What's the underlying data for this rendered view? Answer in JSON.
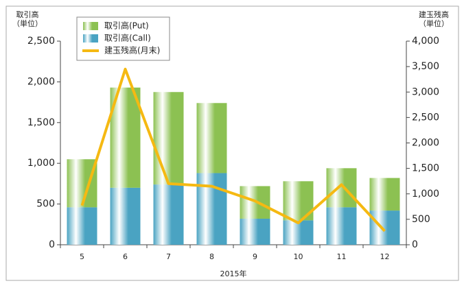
{
  "chart_data": {
    "type": "stacked-bar-line",
    "ylabel": [
      "取引高",
      "（単位）"
    ],
    "y2label": [
      "建玉残高",
      "（単位）"
    ],
    "xlabel": "2015年",
    "categories": [
      "5",
      "6",
      "7",
      "8",
      "9",
      "10",
      "11",
      "12"
    ],
    "series": [
      {
        "name": "取引高(Put)",
        "color": "#8cc152",
        "values": [
          590,
          1230,
          1135,
          860,
          400,
          480,
          480,
          400
        ]
      },
      {
        "name": "取引高(Call)",
        "color": "#4aa3c2",
        "values": [
          460,
          700,
          740,
          880,
          320,
          300,
          460,
          420
        ]
      },
      {
        "name": "建玉残高(月末)",
        "color": "#f5b912",
        "axis": "y2",
        "values": [
          770,
          3450,
          1200,
          1150,
          860,
          430,
          1180,
          270
        ]
      }
    ],
    "ylim": [
      0,
      2500
    ],
    "yticks": [
      0,
      500,
      {
        "value": 1000,
        "label": "1,000"
      },
      {
        "value": 1500,
        "label": "1,500"
      },
      {
        "value": 2000,
        "label": "2,000"
      },
      {
        "value": 2500,
        "label": "2,500"
      }
    ],
    "y2lim": [
      0,
      4000
    ],
    "y2ticks": [
      0,
      500,
      {
        "value": 1000,
        "label": "1,000"
      },
      {
        "value": 1500,
        "label": "1,500"
      },
      {
        "value": 2000,
        "label": "2,000"
      },
      {
        "value": 2500,
        "label": "2,500"
      },
      {
        "value": 3000,
        "label": "3,000"
      },
      {
        "value": 3500,
        "label": "3,500"
      },
      {
        "value": 4000,
        "label": "4,000"
      }
    ]
  }
}
